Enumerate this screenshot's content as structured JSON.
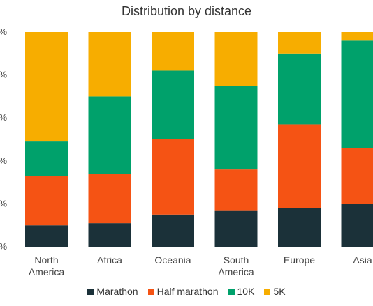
{
  "chart_data": {
    "type": "bar",
    "stacked": true,
    "title": "Distribution by distance",
    "categories": [
      [
        "North",
        "America"
      ],
      [
        "Africa"
      ],
      [
        "Oceania"
      ],
      [
        "South",
        "America"
      ],
      [
        "Europe"
      ],
      [
        "Asia"
      ]
    ],
    "y_tick_labels": [
      "%",
      "%",
      "%",
      "%",
      "%",
      "%"
    ],
    "ylim": [
      0,
      100
    ],
    "legend_position": "bottom",
    "grid": false,
    "series": [
      {
        "name": "Marathon",
        "color": "#1b3139",
        "values": [
          10,
          11,
          15,
          17,
          18,
          20
        ]
      },
      {
        "name": "Half marathon",
        "color": "#f55314",
        "values": [
          23,
          23,
          35,
          19,
          39,
          26
        ]
      },
      {
        "name": "10K",
        "color": "#00a16b",
        "values": [
          16,
          36,
          32,
          39,
          33,
          50
        ]
      },
      {
        "name": "5K",
        "color": "#f7ad00",
        "values": [
          51,
          30,
          18,
          25,
          10,
          4
        ]
      }
    ]
  }
}
